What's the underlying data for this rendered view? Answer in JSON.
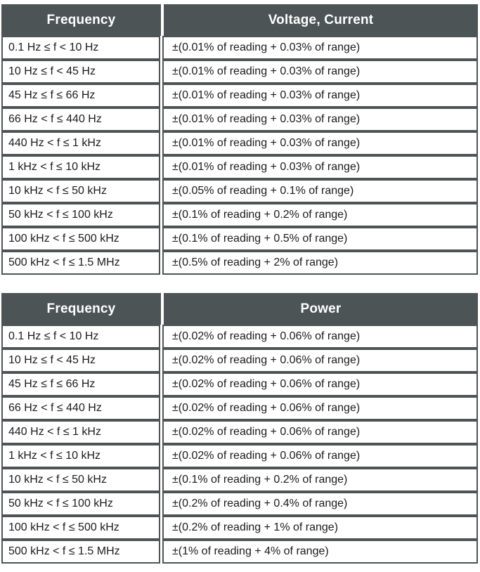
{
  "colors": {
    "header_bg": "#4d5456",
    "border": "#4d5456",
    "header_text": "#ffffff",
    "body_text": "#1b1b1b",
    "page_bg": "#ffffff"
  },
  "tables": [
    {
      "name": "voltage-current-accuracy",
      "headers": [
        "Frequency",
        "Voltage, Current"
      ],
      "rows": [
        [
          "0.1 Hz ≤ f < 10 Hz",
          "±(0.01% of reading + 0.03% of range)"
        ],
        [
          "10 Hz ≤ f < 45 Hz",
          "±(0.01% of reading + 0.03% of range)"
        ],
        [
          "45 Hz ≤ f ≤ 66 Hz",
          "±(0.01% of reading + 0.03% of range)"
        ],
        [
          "66 Hz < f ≤ 440 Hz",
          "±(0.01% of reading + 0.03% of range)"
        ],
        [
          "440 Hz < f ≤ 1 kHz",
          "±(0.01% of reading + 0.03% of range)"
        ],
        [
          "1 kHz < f ≤ 10 kHz",
          "±(0.01% of reading + 0.03% of range)"
        ],
        [
          "10 kHz < f ≤ 50 kHz",
          "±(0.05% of reading + 0.1% of range)"
        ],
        [
          "50 kHz < f ≤ 100 kHz",
          "±(0.1% of reading + 0.2% of range)"
        ],
        [
          "100 kHz < f ≤ 500 kHz",
          "±(0.1% of reading + 0.5% of range)"
        ],
        [
          "500 kHz < f ≤ 1.5 MHz",
          "±(0.5% of reading + 2% of range)"
        ]
      ]
    },
    {
      "name": "power-accuracy",
      "headers": [
        "Frequency",
        "Power"
      ],
      "rows": [
        [
          "0.1 Hz ≤ f < 10 Hz",
          "±(0.02% of reading + 0.06% of range)"
        ],
        [
          "10 Hz ≤ f < 45 Hz",
          "±(0.02% of reading + 0.06% of range)"
        ],
        [
          "45 Hz ≤ f ≤ 66 Hz",
          "±(0.02% of reading + 0.06% of range)"
        ],
        [
          "66 Hz < f ≤ 440 Hz",
          "±(0.02% of reading + 0.06% of range)"
        ],
        [
          "440 Hz < f ≤ 1 kHz",
          "±(0.02% of reading + 0.06% of range)"
        ],
        [
          "1 kHz < f ≤ 10 kHz",
          "±(0.02% of reading + 0.06% of range)"
        ],
        [
          "10 kHz < f ≤ 50 kHz",
          "±(0.1% of reading + 0.2% of range)"
        ],
        [
          "50 kHz < f ≤ 100 kHz",
          "±(0.2% of reading + 0.4% of range)"
        ],
        [
          "100 kHz < f ≤ 500 kHz",
          "±(0.2% of reading + 1% of range)"
        ],
        [
          "500 kHz < f ≤ 1.5 MHz",
          "±(1% of reading + 4% of range)"
        ]
      ]
    }
  ]
}
